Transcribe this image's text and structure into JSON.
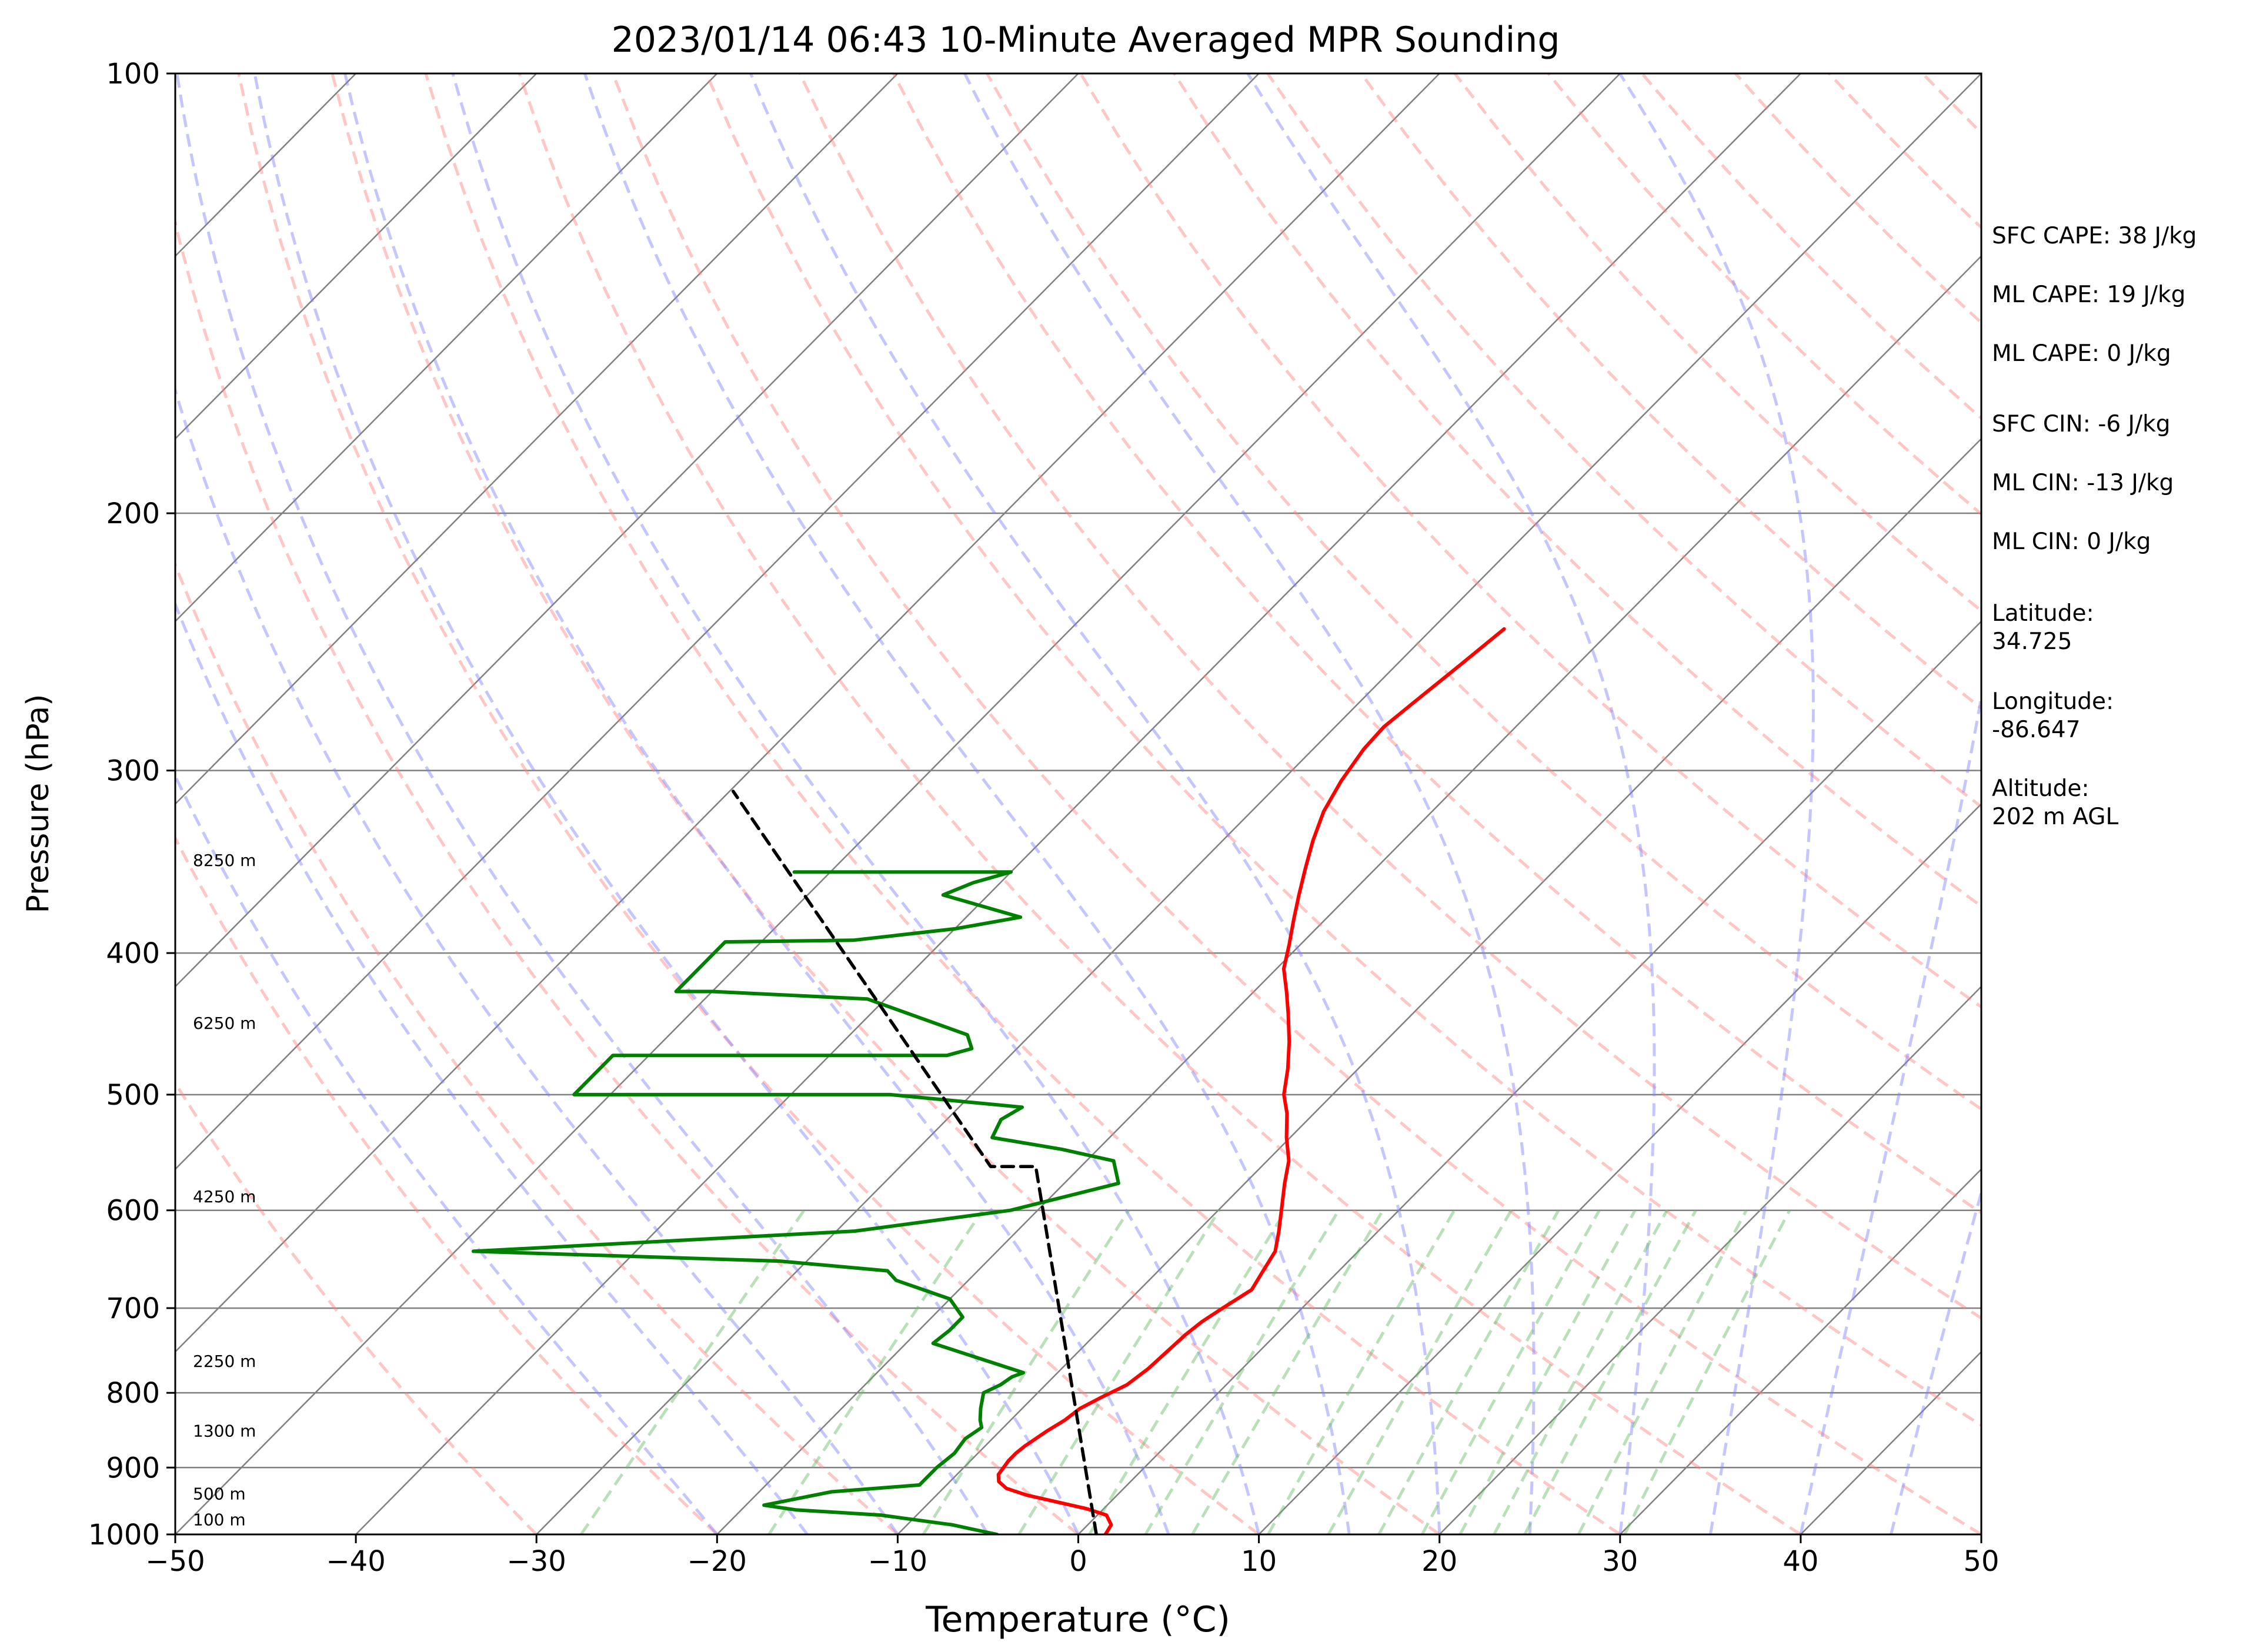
{
  "chart_data": {
    "type": "line",
    "title": "2023/01/14 06:43 10-Minute Averaged MPR Sounding",
    "xlabel": "Temperature (°C)",
    "ylabel": "Pressure (hPa)",
    "xlim": [
      -50,
      50
    ],
    "ylim": [
      1000,
      100
    ],
    "yscale": "log",
    "x_ticks": [
      "−50",
      "−40",
      "−30",
      "−20",
      "−10",
      "0",
      "10",
      "20",
      "30",
      "40",
      "50"
    ],
    "y_ticks": [
      100,
      200,
      300,
      400,
      500,
      600,
      700,
      800,
      900,
      1000
    ],
    "grid": true,
    "series": [
      {
        "role": "temperature",
        "color": "#ff0000",
        "points": [
          [
            1.5,
            1000
          ],
          [
            1.3,
            985
          ],
          [
            0.5,
            970
          ],
          [
            -1,
            960
          ],
          [
            -3,
            950
          ],
          [
            -5,
            940
          ],
          [
            -6.5,
            930
          ],
          [
            -7.3,
            920
          ],
          [
            -7.7,
            910
          ],
          [
            -7.8,
            900
          ],
          [
            -7.9,
            890
          ],
          [
            -7.9,
            880
          ],
          [
            -7.8,
            870
          ],
          [
            -7.4,
            850
          ],
          [
            -7,
            835
          ],
          [
            -6.8,
            820
          ],
          [
            -6.2,
            805
          ],
          [
            -5.5,
            790
          ],
          [
            -5.2,
            770
          ],
          [
            -5.1,
            750
          ],
          [
            -5,
            730
          ],
          [
            -4.8,
            715
          ],
          [
            -4.4,
            700
          ],
          [
            -3.8,
            680
          ],
          [
            -4.2,
            660
          ],
          [
            -4.6,
            640
          ],
          [
            -5.5,
            620
          ],
          [
            -6.5,
            600
          ],
          [
            -7.8,
            575
          ],
          [
            -8.8,
            555
          ],
          [
            -10.2,
            535
          ],
          [
            -11.5,
            515
          ],
          [
            -12.7,
            500
          ],
          [
            -13.9,
            480
          ],
          [
            -15.3,
            460
          ],
          [
            -16.9,
            440
          ],
          [
            -18.2,
            425
          ],
          [
            -19.6,
            410
          ],
          [
            -20.6,
            395
          ],
          [
            -21.7,
            380
          ],
          [
            -22.8,
            365
          ],
          [
            -23.9,
            350
          ],
          [
            -25,
            335
          ],
          [
            -26,
            320
          ],
          [
            -26.7,
            305
          ],
          [
            -27.2,
            290
          ],
          [
            -27.3,
            280
          ],
          [
            -27,
            270
          ],
          [
            -26.5,
            255
          ],
          [
            -26,
            240
          ]
        ]
      },
      {
        "role": "dewpoint",
        "color": "#008000",
        "points": [
          [
            -4.5,
            1000
          ],
          [
            -6.5,
            990
          ],
          [
            -7.5,
            985
          ],
          [
            -9,
            980
          ],
          [
            -12,
            970
          ],
          [
            -17,
            962
          ],
          [
            -19,
            955
          ],
          [
            -17.5,
            945
          ],
          [
            -16,
            935
          ],
          [
            -11.5,
            925
          ],
          [
            -11.5,
            900
          ],
          [
            -11.3,
            880
          ],
          [
            -11.5,
            860
          ],
          [
            -11.2,
            845
          ],
          [
            -11.7,
            835
          ],
          [
            -12.3,
            820
          ],
          [
            -13,
            800
          ],
          [
            -12.5,
            790
          ],
          [
            -12.3,
            780
          ],
          [
            -11.9,
            775
          ],
          [
            -18.5,
            740
          ],
          [
            -18.3,
            725
          ],
          [
            -18.3,
            710
          ],
          [
            -20,
            690
          ],
          [
            -24,
            670
          ],
          [
            -25,
            660
          ],
          [
            -31.5,
            650
          ],
          [
            -49,
            640
          ],
          [
            -29,
            620
          ],
          [
            -21.5,
            600
          ],
          [
            -17,
            575
          ],
          [
            -18.5,
            555
          ],
          [
            -22,
            545
          ],
          [
            -26.5,
            535
          ],
          [
            -27,
            520
          ],
          [
            -26.5,
            510
          ],
          [
            -34.5,
            500
          ],
          [
            -52,
            500
          ],
          [
            -52,
            470
          ],
          [
            -33.5,
            470
          ],
          [
            -32.5,
            465
          ],
          [
            -33.5,
            455
          ],
          [
            -41,
            430
          ],
          [
            -50,
            425
          ],
          [
            -52,
            425
          ],
          [
            -52,
            393
          ],
          [
            -45,
            392
          ],
          [
            -40,
            385
          ],
          [
            -37,
            378
          ],
          [
            -42.5,
            365
          ],
          [
            -41.5,
            358
          ],
          [
            -40,
            352
          ],
          [
            -52,
            352
          ]
        ]
      },
      {
        "role": "parcel",
        "color": "#000000",
        "points": [
          [
            1,
            1000
          ],
          [
            -22.5,
            560
          ],
          [
            -25,
            560
          ],
          [
            -59.8,
            310
          ]
        ]
      }
    ],
    "height_labels": [
      "8250 m",
      "6250 m",
      "4250 m",
      "2250 m",
      "1300 m",
      "500 m",
      "100 m"
    ]
  },
  "annotations": {
    "sfc_cape": "SFC CAPE: 38 J/kg",
    "ml_cape_1": "ML CAPE: 19 J/kg",
    "ml_cape_2": "ML CAPE: 0 J/kg",
    "sfc_cin": "SFC CIN: -6 J/kg",
    "ml_cin_1": "ML CIN: -13 J/kg",
    "ml_cin_2": "ML CIN: 0 J/kg",
    "latitude_label": "Latitude:",
    "latitude_value": "34.725",
    "longitude_label": "Longitude:",
    "longitude_value": "-86.647",
    "altitude_label": "Altitude:",
    "altitude_value": "202 m AGL"
  },
  "colors": {
    "temperature": "#ff0000",
    "dewpoint": "#008000",
    "parcel": "#000000",
    "dry_adiabat": "#ff8080",
    "moist_adiabat": "#8080ff",
    "mixing_ratio": "#66bb66",
    "isotherm": "#808080"
  }
}
